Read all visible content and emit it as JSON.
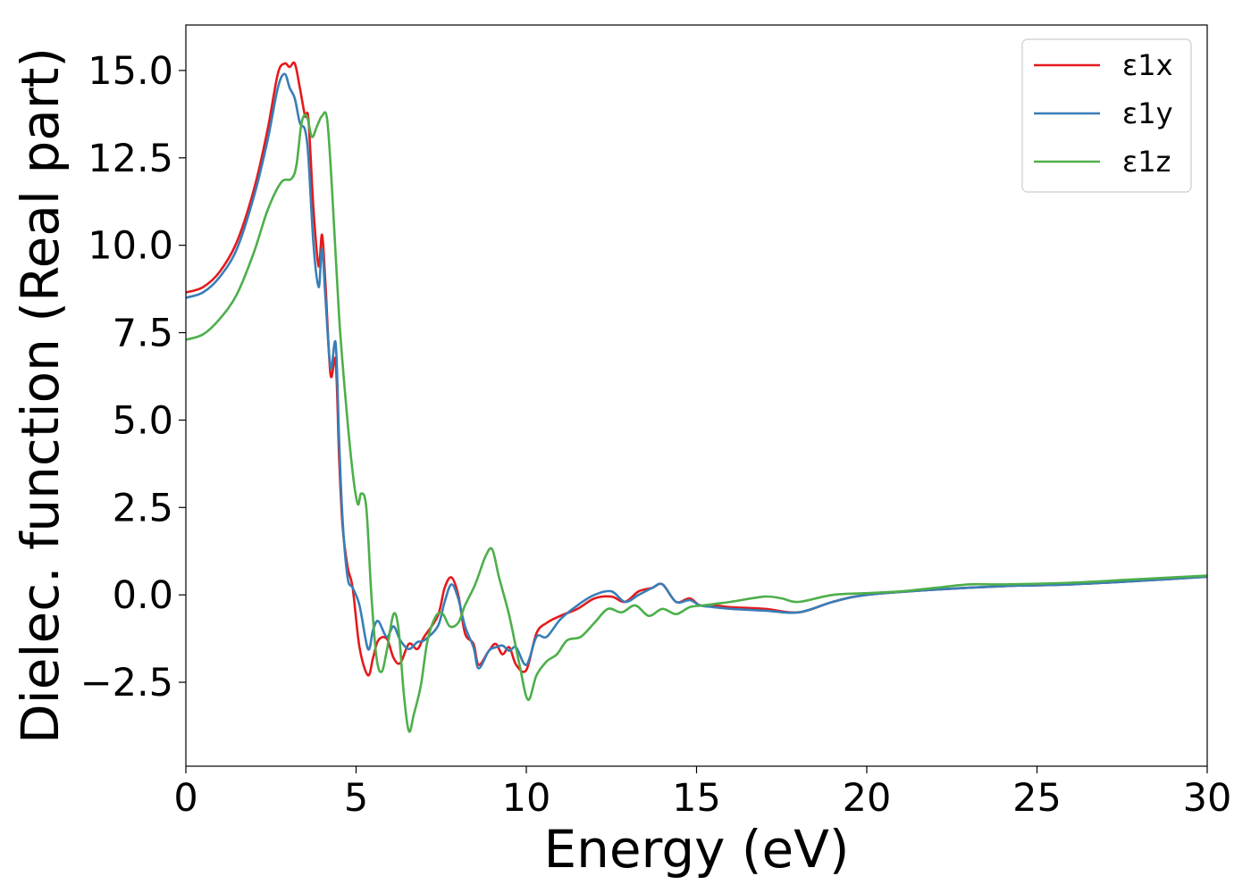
{
  "chart_data": {
    "type": "line",
    "xlabel": "Energy (eV)",
    "ylabel": "Dielec. function (Real part)",
    "xlim": [
      0,
      30
    ],
    "ylim": [
      -4.9,
      16.3
    ],
    "xticks": [
      0,
      5,
      10,
      15,
      20,
      25,
      30
    ],
    "xtick_labels": [
      "0",
      "5",
      "10",
      "15",
      "20",
      "25",
      "30"
    ],
    "yticks": [
      -2.5,
      0.0,
      2.5,
      5.0,
      7.5,
      10.0,
      12.5,
      15.0
    ],
    "ytick_labels": [
      "−2.5",
      "0.0",
      "2.5",
      "5.0",
      "7.5",
      "10.0",
      "12.5",
      "15.0"
    ],
    "grid": false,
    "legend_position": "top-right",
    "series": [
      {
        "name": "ε1x",
        "color": "#e41a1c",
        "x": [
          0,
          0.5,
          1.0,
          1.5,
          2.0,
          2.4,
          2.7,
          2.9,
          3.05,
          3.2,
          3.35,
          3.5,
          3.6,
          3.75,
          3.9,
          4.0,
          4.1,
          4.25,
          4.4,
          4.5,
          4.6,
          4.75,
          4.9,
          5.1,
          5.35,
          5.5,
          5.65,
          5.9,
          6.1,
          6.3,
          6.55,
          6.8,
          7.0,
          7.4,
          7.6,
          7.8,
          8.0,
          8.2,
          8.45,
          8.6,
          8.9,
          9.1,
          9.3,
          9.5,
          9.7,
          10.0,
          10.3,
          10.6,
          11.0,
          11.5,
          12.0,
          12.5,
          12.9,
          13.3,
          13.7,
          14.0,
          14.4,
          14.8,
          15.1,
          15.5,
          16,
          17,
          18,
          19,
          20,
          22,
          24,
          26,
          28,
          30
        ],
        "y": [
          8.65,
          8.8,
          9.25,
          10.1,
          11.6,
          13.3,
          14.9,
          15.2,
          15.1,
          15.2,
          14.5,
          13.7,
          13.6,
          11.0,
          9.4,
          10.3,
          8.9,
          6.3,
          6.7,
          4.0,
          2.0,
          0.8,
          0.2,
          -1.5,
          -2.3,
          -1.8,
          -1.3,
          -1.25,
          -1.8,
          -1.95,
          -1.4,
          -1.55,
          -1.2,
          -0.6,
          0.2,
          0.5,
          0.0,
          -1.1,
          -1.4,
          -2.0,
          -1.6,
          -1.4,
          -1.7,
          -1.5,
          -2.0,
          -2.15,
          -1.1,
          -0.8,
          -0.6,
          -0.4,
          -0.1,
          -0.05,
          -0.2,
          0.1,
          0.2,
          0.3,
          -0.2,
          -0.1,
          -0.3,
          -0.3,
          -0.35,
          -0.4,
          -0.5,
          -0.2,
          0.0,
          0.15,
          0.25,
          0.3,
          0.4,
          0.52
        ]
      },
      {
        "name": "ε1y",
        "color": "#377eb8",
        "x": [
          0,
          0.5,
          1.0,
          1.5,
          2.0,
          2.4,
          2.7,
          2.9,
          3.05,
          3.2,
          3.35,
          3.5,
          3.6,
          3.75,
          3.9,
          4.0,
          4.1,
          4.25,
          4.4,
          4.5,
          4.6,
          4.75,
          4.9,
          5.1,
          5.35,
          5.5,
          5.65,
          5.9,
          6.1,
          6.3,
          6.55,
          6.8,
          7.0,
          7.4,
          7.6,
          7.8,
          8.0,
          8.2,
          8.45,
          8.6,
          8.9,
          9.1,
          9.3,
          9.5,
          9.7,
          10.0,
          10.3,
          10.6,
          11.0,
          11.5,
          12.0,
          12.5,
          12.9,
          13.3,
          13.7,
          14.0,
          14.4,
          14.8,
          15.1,
          15.5,
          16,
          17,
          18,
          19,
          20,
          22,
          24,
          26,
          28,
          30
        ],
        "y": [
          8.5,
          8.65,
          9.1,
          9.9,
          11.4,
          13.0,
          14.5,
          14.9,
          14.5,
          14.2,
          13.5,
          13.3,
          12.5,
          10.0,
          8.8,
          9.9,
          8.5,
          6.5,
          7.2,
          4.5,
          2.2,
          0.5,
          0.2,
          -0.3,
          -1.55,
          -1.0,
          -0.75,
          -1.2,
          -0.9,
          -1.3,
          -1.55,
          -1.35,
          -1.3,
          -0.9,
          -0.2,
          0.3,
          -0.1,
          -0.9,
          -1.5,
          -2.1,
          -1.6,
          -1.5,
          -1.45,
          -1.6,
          -1.5,
          -2.0,
          -1.2,
          -1.2,
          -0.7,
          -0.3,
          0.0,
          0.1,
          -0.2,
          0.0,
          0.2,
          0.3,
          -0.2,
          -0.15,
          -0.3,
          -0.35,
          -0.4,
          -0.45,
          -0.5,
          -0.2,
          0.0,
          0.15,
          0.25,
          0.3,
          0.4,
          0.52
        ]
      },
      {
        "name": "ε1z",
        "color": "#4daf4a",
        "x": [
          0,
          0.5,
          1.0,
          1.5,
          2.0,
          2.4,
          2.8,
          3.1,
          3.25,
          3.4,
          3.55,
          3.7,
          3.85,
          4.0,
          4.15,
          4.3,
          4.5,
          4.7,
          4.9,
          5.05,
          5.15,
          5.3,
          5.45,
          5.6,
          5.75,
          5.9,
          6.1,
          6.25,
          6.4,
          6.55,
          6.7,
          6.9,
          7.1,
          7.35,
          7.55,
          7.75,
          8.0,
          8.2,
          8.5,
          8.8,
          9.0,
          9.2,
          9.5,
          9.8,
          10.05,
          10.3,
          10.6,
          10.9,
          11.2,
          11.6,
          12.0,
          12.4,
          12.8,
          13.2,
          13.6,
          14.0,
          14.4,
          14.8,
          15.2,
          15.6,
          16,
          17,
          17.5,
          18,
          19,
          20,
          21,
          22,
          23,
          24,
          26,
          28,
          30
        ],
        "y": [
          7.3,
          7.45,
          7.9,
          8.6,
          9.8,
          11.0,
          11.8,
          11.9,
          12.3,
          13.5,
          13.7,
          13.1,
          13.4,
          13.7,
          13.6,
          11.5,
          8.0,
          5.5,
          3.5,
          2.6,
          2.9,
          2.5,
          0.0,
          -1.8,
          -2.2,
          -1.6,
          -0.55,
          -1.0,
          -2.8,
          -3.9,
          -3.4,
          -2.6,
          -1.3,
          -0.6,
          -0.55,
          -0.9,
          -0.8,
          -0.3,
          0.3,
          1.1,
          1.3,
          0.5,
          -0.6,
          -2.0,
          -3.0,
          -2.3,
          -1.9,
          -1.7,
          -1.3,
          -1.2,
          -0.8,
          -0.4,
          -0.5,
          -0.3,
          -0.6,
          -0.4,
          -0.55,
          -0.35,
          -0.3,
          -0.25,
          -0.2,
          -0.05,
          -0.1,
          -0.2,
          0.0,
          0.05,
          0.1,
          0.2,
          0.3,
          0.3,
          0.35,
          0.45,
          0.55
        ]
      }
    ]
  }
}
